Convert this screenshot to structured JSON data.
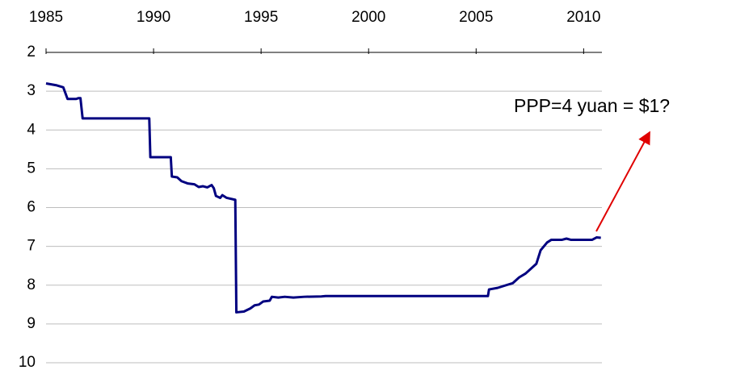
{
  "chart_data": {
    "type": "line",
    "annotation": "PPP=4 yuan = $1?",
    "x": [
      1985.0,
      1985.5,
      1985.8,
      1986.0,
      1986.4,
      1986.5,
      1986.6,
      1986.7,
      1989.8,
      1989.85,
      1990.8,
      1990.85,
      1991.1,
      1991.3,
      1991.6,
      1991.9,
      1992.1,
      1992.3,
      1992.5,
      1992.7,
      1992.8,
      1992.9,
      1993.1,
      1993.2,
      1993.4,
      1993.8,
      1993.85,
      1994.2,
      1994.5,
      1994.7,
      1994.9,
      1995.1,
      1995.4,
      1995.5,
      1995.8,
      1996.1,
      1996.5,
      1997.0,
      1997.8,
      1998.0,
      2005.55,
      2005.6,
      2006.0,
      2006.4,
      2006.7,
      2007.0,
      2007.3,
      2007.5,
      2007.8,
      2008.0,
      2008.3,
      2008.5,
      2009.0,
      2009.2,
      2009.4,
      2010.4,
      2010.6,
      2010.8
    ],
    "series": [
      {
        "color": "#000080",
        "values": [
          2.8,
          2.85,
          2.9,
          3.2,
          3.2,
          3.18,
          3.18,
          3.7,
          3.7,
          4.7,
          4.7,
          5.2,
          5.22,
          5.32,
          5.38,
          5.4,
          5.47,
          5.45,
          5.48,
          5.42,
          5.5,
          5.7,
          5.75,
          5.68,
          5.75,
          5.8,
          8.7,
          8.68,
          8.6,
          8.52,
          8.5,
          8.42,
          8.4,
          8.3,
          8.32,
          8.3,
          8.32,
          8.3,
          8.29,
          8.28,
          8.28,
          8.11,
          8.07,
          8.0,
          7.95,
          7.8,
          7.7,
          7.6,
          7.45,
          7.1,
          6.9,
          6.83,
          6.83,
          6.8,
          6.83,
          6.83,
          6.77,
          6.78
        ]
      }
    ],
    "xlim": [
      1985,
      2010.85
    ],
    "xticks": [
      1985,
      1990,
      1995,
      2000,
      2005,
      2010
    ],
    "ylim": [
      2,
      10
    ],
    "yticks": [
      2,
      3,
      4,
      5,
      6,
      7,
      8,
      9,
      10
    ],
    "y_inverted": true,
    "x_axis_position": "top",
    "grid": true
  }
}
